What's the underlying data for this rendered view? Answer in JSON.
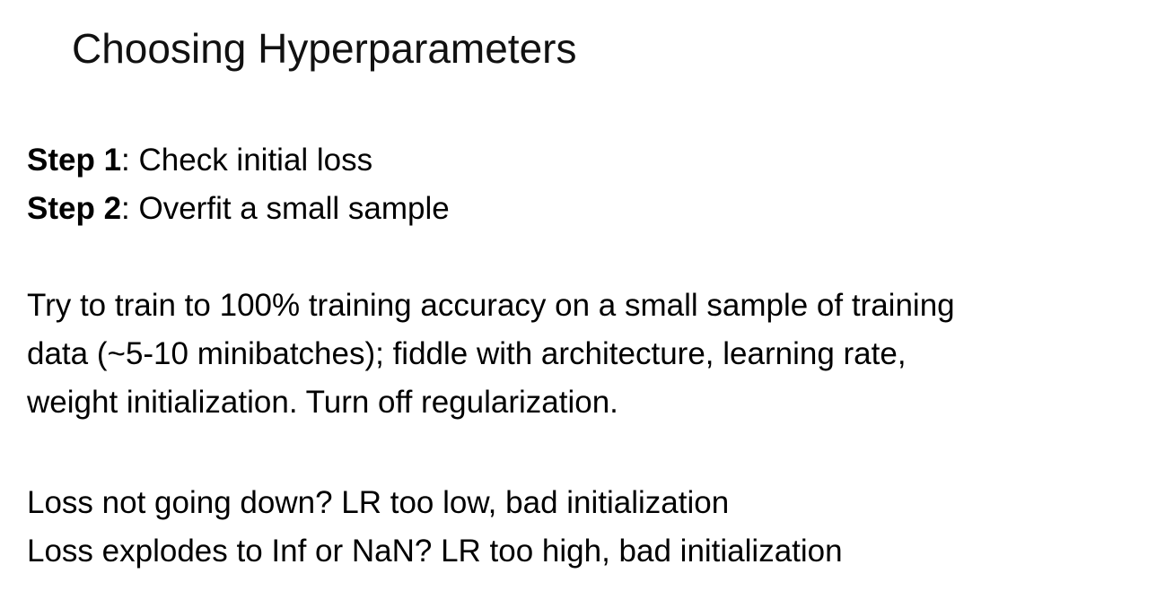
{
  "slide": {
    "title": "Choosing Hyperparameters",
    "steps": [
      {
        "label": "Step 1",
        "text": ": Check initial loss"
      },
      {
        "label": "Step 2",
        "text": ": Overfit a small sample"
      }
    ],
    "paragraph_lines": [
      "Try to train to 100% training accuracy on a small sample of training",
      "data (~5-10 minibatches); fiddle with architecture, learning rate,",
      "weight initialization. Turn off regularization."
    ],
    "loss_lines": [
      "Loss not going down? LR too low, bad initialization",
      "Loss explodes to Inf or NaN? LR too high, bad initialization"
    ]
  }
}
